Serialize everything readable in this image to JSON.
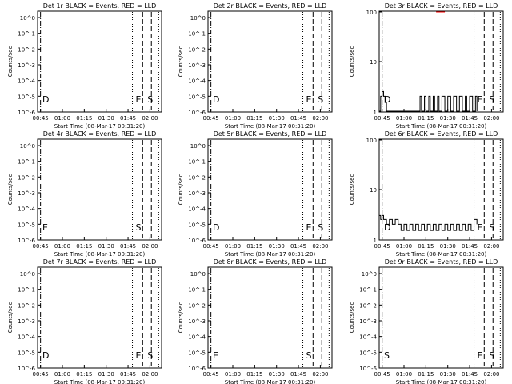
{
  "chart_data": [
    {
      "type": "line",
      "title": "Det 1r BLACK = Events, RED = LLD",
      "xlabel": "Start Time (08-Mar-17 00:31:20)",
      "ylabel": "Counts/sec",
      "y_scale": "log",
      "ylim": [
        "10^-5",
        "10^-6"
      ],
      "y_tick_labels": [
        "10^-6",
        "10^-5",
        "10^-4",
        "10^-3",
        "10^-2",
        "10^-1",
        "10^0"
      ],
      "x_tick_labels": [
        "00:45",
        "01:00",
        "01:15",
        "01:30",
        "01:45",
        "02:00"
      ],
      "markers": [
        "D",
        "E",
        "S"
      ],
      "series": []
    },
    {
      "type": "line",
      "title": "Det 2r BLACK = Events, RED = LLD",
      "xlabel": "Start Time (08-Mar-17 00:31:20)",
      "ylabel": "Counts/sec",
      "y_scale": "log",
      "y_tick_labels": [
        "10^-6",
        "10^-5",
        "10^-4",
        "10^-3",
        "10^-2",
        "10^-1",
        "10^0"
      ],
      "x_tick_labels": [
        "00:45",
        "01:00",
        "01:15",
        "01:30",
        "01:45",
        "02:00"
      ],
      "markers": [
        "D",
        "E",
        "S"
      ],
      "series": []
    },
    {
      "type": "line",
      "title": "Det 3r BLACK = Events, RED = LLD",
      "xlabel": "Start Time (08-Mar-17 00:31:20)",
      "ylabel": "Counts/sec",
      "y_scale": "log",
      "y_tick_labels": [
        "100",
        "10",
        "1"
      ],
      "x_tick_labels": [
        "00:45",
        "01:00",
        "01:15",
        "01:30",
        "01:45",
        "02:00"
      ],
      "markers": [
        "D",
        "E",
        "S"
      ],
      "series": [
        {
          "color": "#000000",
          "points": [
            [
              "00:43",
              1
            ],
            [
              "00:44",
              2
            ],
            [
              "00:45",
              2.5
            ],
            [
              "00:46",
              2
            ],
            [
              "00:47",
              1.5
            ],
            [
              "00:48",
              1
            ],
            [
              "01:10",
              1
            ],
            [
              "01:11",
              2
            ],
            [
              "01:12",
              1
            ],
            [
              "01:14",
              2
            ],
            [
              "01:15",
              1
            ],
            [
              "01:17",
              2
            ],
            [
              "01:18",
              1
            ],
            [
              "01:20",
              2
            ],
            [
              "01:21",
              1
            ],
            [
              "01:23",
              2
            ],
            [
              "01:24",
              1
            ],
            [
              "01:26",
              2
            ],
            [
              "01:28",
              1
            ],
            [
              "01:30",
              2
            ],
            [
              "01:32",
              1
            ],
            [
              "01:34",
              2
            ],
            [
              "01:36",
              1
            ],
            [
              "01:38",
              2
            ],
            [
              "01:40",
              1
            ],
            [
              "01:42",
              2
            ],
            [
              "01:43",
              1
            ],
            [
              "01:45",
              2
            ],
            [
              "01:47",
              1
            ],
            [
              "01:49",
              2
            ],
            [
              "01:50",
              1
            ]
          ]
        },
        {
          "color": "#ff0000",
          "points": [
            [
              "01:22",
              100
            ],
            [
              "01:25",
              100
            ],
            [
              "01:28",
              100
            ]
          ]
        }
      ]
    },
    {
      "type": "line",
      "title": "Det 4r BLACK = Events, RED = LLD",
      "xlabel": "Start Time (08-Mar-17 00:31:20)",
      "ylabel": "Counts/sec",
      "y_scale": "log",
      "y_tick_labels": [
        "10^-6",
        "10^-5",
        "10^-4",
        "10^-3",
        "10^-2",
        "10^-1",
        "10^0"
      ],
      "x_tick_labels": [
        "00:45",
        "01:00",
        "01:15",
        "01:30",
        "01:45",
        "02:00"
      ],
      "markers": [
        "E",
        "S"
      ],
      "series": []
    },
    {
      "type": "line",
      "title": "Det 5r BLACK = Events, RED = LLD",
      "xlabel": "Start Time (08-Mar-17 00:31:20)",
      "ylabel": "Counts/sec",
      "y_scale": "log",
      "y_tick_labels": [
        "10^-6",
        "10^-5",
        "10^-4",
        "10^-3",
        "10^-2",
        "10^-1",
        "10^0"
      ],
      "x_tick_labels": [
        "00:45",
        "01:00",
        "01:15",
        "01:30",
        "01:45",
        "02:00"
      ],
      "markers": [
        "D",
        "E",
        "S"
      ],
      "series": []
    },
    {
      "type": "line",
      "title": "Det 6r BLACK = Events, RED = LLD",
      "xlabel": "Start Time (08-Mar-17 00:31:20)",
      "ylabel": "Counts/sec",
      "y_scale": "log",
      "y_tick_labels": [
        "100",
        "10",
        "1"
      ],
      "x_tick_labels": [
        "00:45",
        "01:00",
        "01:15",
        "01:30",
        "01:45",
        "02:00"
      ],
      "markers": [
        "D",
        "E",
        "S"
      ],
      "series": [
        {
          "color": "#000000",
          "points": [
            [
              "00:43",
              3
            ],
            [
              "00:44",
              2.5
            ],
            [
              "00:45",
              3
            ],
            [
              "00:46",
              2.5
            ],
            [
              "00:48",
              2
            ],
            [
              "00:50",
              2.5
            ],
            [
              "00:52",
              2
            ],
            [
              "00:54",
              2.5
            ],
            [
              "00:56",
              2
            ],
            [
              "00:58",
              1.5
            ],
            [
              "01:00",
              2
            ],
            [
              "01:02",
              1.5
            ],
            [
              "01:04",
              2
            ],
            [
              "01:06",
              1.5
            ],
            [
              "01:08",
              2
            ],
            [
              "01:10",
              1.5
            ],
            [
              "01:12",
              2
            ],
            [
              "01:14",
              1.5
            ],
            [
              "01:16",
              2
            ],
            [
              "01:18",
              1.5
            ],
            [
              "01:20",
              2
            ],
            [
              "01:22",
              1.5
            ],
            [
              "01:24",
              2
            ],
            [
              "01:26",
              1.5
            ],
            [
              "01:28",
              2
            ],
            [
              "01:30",
              1.5
            ],
            [
              "01:32",
              2
            ],
            [
              "01:34",
              1.5
            ],
            [
              "01:36",
              2
            ],
            [
              "01:38",
              1.5
            ],
            [
              "01:40",
              2
            ],
            [
              "01:42",
              1.5
            ],
            [
              "01:44",
              2
            ],
            [
              "01:46",
              1.5
            ],
            [
              "01:48",
              2.5
            ],
            [
              "01:50",
              2
            ]
          ]
        }
      ]
    },
    {
      "type": "line",
      "title": "Det 7r BLACK = Events, RED = LLD",
      "xlabel": "Start Time (08-Mar-17 00:31:20)",
      "ylabel": "Counts/sec",
      "y_scale": "log",
      "y_tick_labels": [
        "10^-6",
        "10^-5",
        "10^-4",
        "10^-3",
        "10^-2",
        "10^-1",
        "10^0"
      ],
      "x_tick_labels": [
        "00:45",
        "01:00",
        "01:15",
        "01:30",
        "01:45",
        "02:00"
      ],
      "markers": [
        "D",
        "E",
        "S"
      ],
      "series": []
    },
    {
      "type": "line",
      "title": "Det 8r BLACK = Events, RED = LLD",
      "xlabel": "Start Time (08-Mar-17 00:31:20)",
      "ylabel": "Counts/sec",
      "y_scale": "log",
      "y_tick_labels": [
        "10^-6",
        "10^-5",
        "10^-4",
        "10^-3",
        "10^-2",
        "10^-1",
        "10^0"
      ],
      "x_tick_labels": [
        "00:45",
        "01:00",
        "01:15",
        "01:30",
        "01:45",
        "02:00"
      ],
      "markers": [
        "E",
        "S"
      ],
      "series": []
    },
    {
      "type": "line",
      "title": "Det 9r BLACK = Events, RED = LLD",
      "xlabel": "Start Time (08-Mar-17 00:31:20)",
      "ylabel": "Counts/sec",
      "y_scale": "log",
      "y_tick_labels": [
        "10^-6",
        "10^-5",
        "10^-4",
        "10^-3",
        "10^-2",
        "10^-1",
        "10^0"
      ],
      "x_tick_labels": [
        "00:45",
        "01:00",
        "01:15",
        "01:30",
        "01:45",
        "02:00"
      ],
      "markers": [
        "S",
        "E",
        "S"
      ],
      "series": []
    }
  ]
}
